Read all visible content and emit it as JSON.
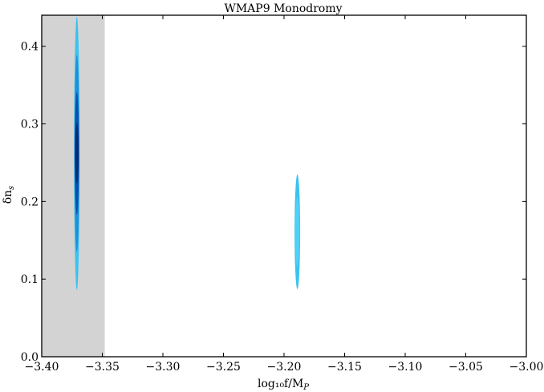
{
  "chart_data": {
    "type": "contour",
    "title": "WMAP9 Monodromy",
    "xlabel": "log₁₀f/M",
    "xlabel_subscript": "P",
    "ylabel": "δn",
    "ylabel_subscript": "s",
    "xlim": [
      -3.4,
      -3.0
    ],
    "ylim": [
      0.0,
      0.44
    ],
    "xticks": [
      -3.4,
      -3.35,
      -3.3,
      -3.25,
      -3.2,
      -3.15,
      -3.1,
      -3.05,
      -3.0
    ],
    "xtick_labels": [
      "−3.40",
      "−3.35",
      "−3.30",
      "−3.25",
      "−3.20",
      "−3.15",
      "−3.10",
      "−3.05",
      "−3.00"
    ],
    "yticks": [
      0.0,
      0.1,
      0.2,
      0.3,
      0.4
    ],
    "ytick_labels": [
      "0.0",
      "0.1",
      "0.2",
      "0.3",
      "0.4"
    ],
    "excluded_region": {
      "x_from": -3.4,
      "x_to": -3.348,
      "color": "#d3d3d3"
    },
    "contours": [
      {
        "x_center": -3.371,
        "y_center": 0.262,
        "x_halfwidth": 0.0023,
        "y_halfheight": 0.176,
        "levels": [
          {
            "scale": 1.0,
            "color": "#39c3f0"
          },
          {
            "scale": 0.72,
            "color": "#1f8fd6"
          },
          {
            "scale": 0.45,
            "color": "#0b50a8"
          },
          {
            "scale": 0.22,
            "color": "#062a78"
          }
        ]
      },
      {
        "x_center": -3.189,
        "y_center": 0.161,
        "x_halfwidth": 0.0023,
        "y_halfheight": 0.074,
        "levels": [
          {
            "scale": 1.0,
            "color": "#39c3f0"
          },
          {
            "scale": 0.6,
            "color": "#4fd0f7"
          }
        ]
      }
    ]
  }
}
